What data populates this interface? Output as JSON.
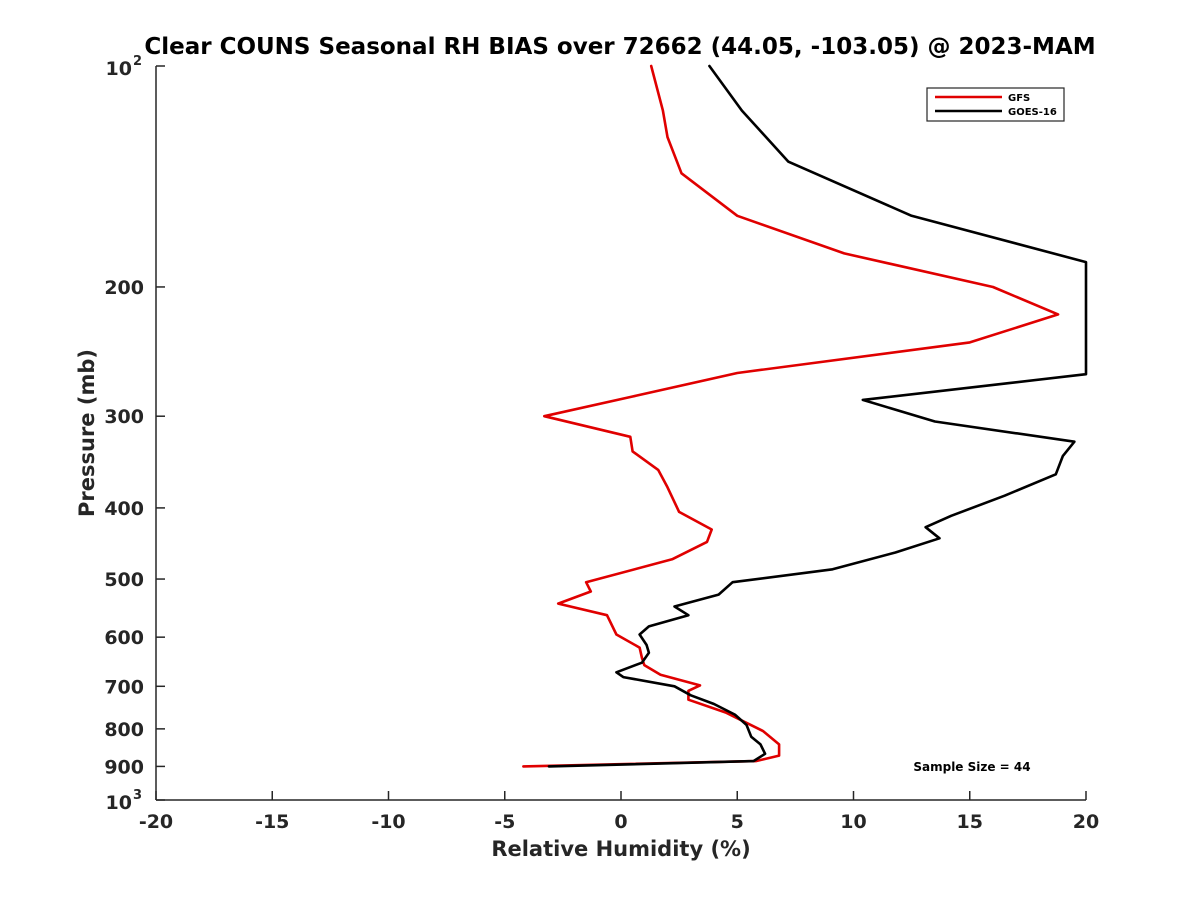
{
  "chart_data": {
    "type": "line",
    "title": "Clear COUNS Seasonal RH BIAS over 72662 (44.05, -103.05) @ 2023-MAM",
    "xlabel": "Relative Humidity (%)",
    "ylabel": "Pressure (mb)",
    "xlim": [
      -20,
      20
    ],
    "ylim": [
      100,
      1000
    ],
    "y_scale": "log",
    "y_reversed": true,
    "x_ticks": [
      -20,
      -15,
      -10,
      -5,
      0,
      5,
      10,
      15,
      20
    ],
    "x_tick_labels": [
      "-20",
      "-15",
      "-10",
      "-5",
      "0",
      "5",
      "10",
      "15",
      "20"
    ],
    "y_ticks": [
      200,
      300,
      400,
      500,
      600,
      700,
      800,
      900
    ],
    "y_tick_labels": [
      "200",
      "300",
      "400",
      "500",
      "600",
      "700",
      "800",
      "900"
    ],
    "y_end_labels": {
      "top_base": "10",
      "top_exp": "2",
      "bottom_base": "10",
      "bottom_exp": "3"
    },
    "grid": false,
    "legend_position": "top-right",
    "annotation": "Sample Size = 44",
    "series": [
      {
        "name": "GFS",
        "color": "#e00000",
        "points": [
          [
            1.3,
            100
          ],
          [
            1.8,
            115
          ],
          [
            2.0,
            125
          ],
          [
            2.6,
            140
          ],
          [
            5.0,
            160
          ],
          [
            9.6,
            180
          ],
          [
            16.0,
            200
          ],
          [
            18.8,
            218
          ],
          [
            15.0,
            238
          ],
          [
            5.0,
            262
          ],
          [
            0.5,
            282
          ],
          [
            -3.3,
            300
          ],
          [
            0.4,
            320
          ],
          [
            0.5,
            335
          ],
          [
            1.6,
            355
          ],
          [
            2.0,
            375
          ],
          [
            2.5,
            405
          ],
          [
            3.9,
            428
          ],
          [
            3.7,
            445
          ],
          [
            2.2,
            470
          ],
          [
            -1.5,
            505
          ],
          [
            -1.3,
            520
          ],
          [
            -2.7,
            540
          ],
          [
            -0.6,
            560
          ],
          [
            -0.2,
            595
          ],
          [
            0.8,
            620
          ],
          [
            0.9,
            640
          ],
          [
            1.0,
            655
          ],
          [
            1.7,
            675
          ],
          [
            3.4,
            698
          ],
          [
            2.9,
            710
          ],
          [
            2.9,
            730
          ],
          [
            4.5,
            760
          ],
          [
            6.1,
            805
          ],
          [
            6.8,
            840
          ],
          [
            6.8,
            870
          ],
          [
            5.8,
            885
          ],
          [
            -4.2,
            900
          ]
        ]
      },
      {
        "name": "GOES-16",
        "color": "#000000",
        "points": [
          [
            3.8,
            100
          ],
          [
            5.2,
            115
          ],
          [
            7.2,
            135
          ],
          [
            12.5,
            160
          ],
          [
            20.0,
            185
          ],
          [
            20.0,
            263
          ],
          [
            10.4,
            285
          ],
          [
            13.5,
            305
          ],
          [
            19.5,
            325
          ],
          [
            19.0,
            340
          ],
          [
            18.7,
            360
          ],
          [
            16.5,
            385
          ],
          [
            14.2,
            410
          ],
          [
            13.1,
            425
          ],
          [
            13.7,
            440
          ],
          [
            11.8,
            460
          ],
          [
            9.1,
            485
          ],
          [
            4.8,
            505
          ],
          [
            4.2,
            525
          ],
          [
            2.3,
            545
          ],
          [
            2.9,
            560
          ],
          [
            1.2,
            580
          ],
          [
            0.8,
            595
          ],
          [
            1.1,
            615
          ],
          [
            1.2,
            630
          ],
          [
            0.9,
            650
          ],
          [
            -0.2,
            670
          ],
          [
            0.1,
            680
          ],
          [
            2.3,
            700
          ],
          [
            3.0,
            720
          ],
          [
            4.0,
            740
          ],
          [
            4.9,
            765
          ],
          [
            5.4,
            790
          ],
          [
            5.6,
            820
          ],
          [
            6.0,
            840
          ],
          [
            6.2,
            865
          ],
          [
            5.7,
            885
          ],
          [
            -3.1,
            900
          ]
        ]
      }
    ]
  }
}
